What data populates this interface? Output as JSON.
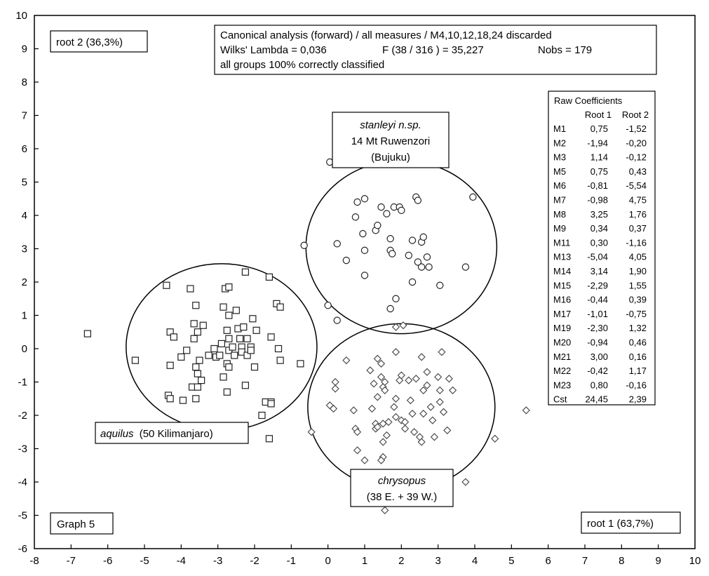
{
  "chart_data": {
    "type": "scatter",
    "xlim": [
      -8,
      10
    ],
    "ylim": [
      -6,
      10
    ],
    "x_ticks": [
      "-8",
      "-7",
      "-6",
      "-5",
      "-4",
      "-3",
      "-2",
      "-1",
      "0",
      "1",
      "2",
      "3",
      "4",
      "5",
      "6",
      "7",
      "8",
      "9",
      "10"
    ],
    "y_ticks": [
      "10",
      "9",
      "8",
      "7",
      "6",
      "5",
      "4",
      "3",
      "2",
      "1",
      "0",
      "-1",
      "-2",
      "-3",
      "-4",
      "-5",
      "-6"
    ],
    "grid": false,
    "xlabel": "root 1 (63,7%)",
    "ylabel": "root 2 (36,3%)",
    "graph_label": "Graph 5",
    "summary": {
      "line1": "Canonical analysis (forward) / all measures / M4,10,12,18,24 discarded",
      "line2a": "Wilks' Lambda = 0,036",
      "line2b": "F (38 / 316 ) = 35,227",
      "line2c": "Nobs = 179",
      "line3": "all groups 100% correctly classified"
    },
    "group_labels": {
      "stanleyi": {
        "name": "stanleyi n.sp.",
        "line2": "14 Mt Ruwenzori",
        "line3": "(Bujuku)"
      },
      "aquilus": {
        "name": "aquilus",
        "rest": "(50 Kilimanjaro)"
      },
      "chrysopus": {
        "name": "chrysopus",
        "line2": "(38 E. + 39 W.)"
      }
    },
    "ellipses": [
      {
        "group": "aquilus",
        "cx": -2.9,
        "cy": 0.05,
        "rx": 2.6,
        "ry": 2.5
      },
      {
        "group": "stanleyi",
        "cx": 2.0,
        "cy": 3.05,
        "rx": 2.6,
        "ry": 2.6
      },
      {
        "group": "chrysopus",
        "cx": 2.0,
        "cy": -1.75,
        "rx": 2.55,
        "ry": 2.5
      }
    ],
    "coefficients": {
      "title": "Raw Coefficients",
      "headers": [
        "",
        "Root 1",
        "Root 2"
      ],
      "rows": [
        [
          "M1",
          "0,75",
          "-1,52"
        ],
        [
          "M2",
          "-1,94",
          "-0,20"
        ],
        [
          "M3",
          "1,14",
          "-0,12"
        ],
        [
          "M5",
          "0,75",
          "0,43"
        ],
        [
          "M6",
          "-0,81",
          "-5,54"
        ],
        [
          "M7",
          "-0,98",
          "4,75"
        ],
        [
          "M8",
          "3,25",
          "1,76"
        ],
        [
          "M9",
          "0,34",
          "0,37"
        ],
        [
          "M11",
          "0,30",
          "-1,16"
        ],
        [
          "M13",
          "-5,04",
          "4,05"
        ],
        [
          "M14",
          "3,14",
          "1,90"
        ],
        [
          "M15",
          "-2,29",
          "1,55"
        ],
        [
          "M16",
          "-0,44",
          "0,39"
        ],
        [
          "M17",
          "-1,01",
          "-0,75"
        ],
        [
          "M19",
          "-2,30",
          "1,32"
        ],
        [
          "M20",
          "-0,94",
          "0,46"
        ],
        [
          "M21",
          "3,00",
          "0,16"
        ],
        [
          "M22",
          "-0,42",
          "1,17"
        ],
        [
          "M23",
          "0,80",
          "-0,16"
        ],
        [
          "Cst",
          "24,45",
          "2,39"
        ]
      ]
    },
    "series": [
      {
        "group": "aquilus",
        "marker": "square",
        "points": [
          [
            -6.55,
            0.45
          ],
          [
            -5.25,
            -0.35
          ],
          [
            -4.4,
            1.9
          ],
          [
            -4.3,
            0.5
          ],
          [
            -4.3,
            -0.5
          ],
          [
            -4.35,
            -1.4
          ],
          [
            -4.3,
            -1.5
          ],
          [
            -3.95,
            -1.55
          ],
          [
            -3.75,
            1.8
          ],
          [
            -4.2,
            0.35
          ],
          [
            -4.0,
            -0.25
          ],
          [
            -3.85,
            -0.05
          ],
          [
            -3.6,
            -1.5
          ],
          [
            -3.7,
            -1.15
          ],
          [
            -3.55,
            -1.15
          ],
          [
            -3.45,
            -0.95
          ],
          [
            -3.5,
            -0.35
          ],
          [
            -3.65,
            0.3
          ],
          [
            -3.55,
            0.5
          ],
          [
            -3.65,
            0.75
          ],
          [
            -3.4,
            0.7
          ],
          [
            -3.6,
            -0.55
          ],
          [
            -3.55,
            -0.75
          ],
          [
            -3.6,
            1.3
          ],
          [
            -3.25,
            -0.2
          ],
          [
            -3.1,
            0.0
          ],
          [
            -3.05,
            -0.25
          ],
          [
            -2.95,
            -0.2
          ],
          [
            -2.85,
            1.25
          ],
          [
            -2.9,
            0.15
          ],
          [
            -2.85,
            -0.85
          ],
          [
            -2.75,
            -0.45
          ],
          [
            -2.8,
            1.8
          ],
          [
            -2.7,
            1.85
          ],
          [
            -2.7,
            1.0
          ],
          [
            -2.75,
            0.55
          ],
          [
            -2.7,
            0.3
          ],
          [
            -2.7,
            -0.05
          ],
          [
            -2.7,
            -0.55
          ],
          [
            -2.75,
            -1.3
          ],
          [
            -2.6,
            0.05
          ],
          [
            -2.55,
            -0.2
          ],
          [
            -2.5,
            1.15
          ],
          [
            -2.45,
            0.6
          ],
          [
            -2.4,
            0.3
          ],
          [
            -2.35,
            0.05
          ],
          [
            -2.35,
            -0.1
          ],
          [
            -2.3,
            0.65
          ],
          [
            -2.25,
            2.3
          ],
          [
            -2.2,
            0.3
          ],
          [
            -2.2,
            -0.2
          ],
          [
            -2.1,
            0.05
          ],
          [
            -2.05,
            0.9
          ],
          [
            -2.1,
            -0.05
          ],
          [
            -2.0,
            -0.55
          ],
          [
            -1.95,
            0.55
          ],
          [
            -2.25,
            -1.1
          ],
          [
            -1.8,
            -2.0
          ],
          [
            -1.7,
            -1.6
          ],
          [
            -1.55,
            -1.6
          ],
          [
            -1.55,
            -1.65
          ],
          [
            -1.55,
            0.35
          ],
          [
            -1.6,
            2.15
          ],
          [
            -1.4,
            1.35
          ],
          [
            -1.3,
            1.25
          ],
          [
            -1.35,
            0.0
          ],
          [
            -1.3,
            -0.35
          ],
          [
            -1.6,
            -2.7
          ],
          [
            -0.75,
            -0.45
          ]
        ]
      },
      {
        "group": "stanleyi",
        "marker": "circle",
        "points": [
          [
            0.05,
            5.6
          ],
          [
            -0.65,
            3.1
          ],
          [
            0.0,
            1.3
          ],
          [
            0.25,
            0.85
          ],
          [
            0.25,
            3.15
          ],
          [
            0.5,
            2.65
          ],
          [
            0.75,
            3.95
          ],
          [
            0.8,
            4.4
          ],
          [
            1.0,
            4.5
          ],
          [
            0.95,
            3.45
          ],
          [
            1.0,
            2.95
          ],
          [
            1.0,
            2.2
          ],
          [
            1.3,
            3.55
          ],
          [
            1.35,
            3.7
          ],
          [
            1.45,
            4.25
          ],
          [
            1.6,
            4.05
          ],
          [
            1.7,
            3.3
          ],
          [
            1.7,
            2.95
          ],
          [
            1.75,
            2.85
          ],
          [
            1.7,
            1.2
          ],
          [
            1.85,
            1.5
          ],
          [
            1.8,
            4.25
          ],
          [
            1.95,
            4.25
          ],
          [
            2.0,
            4.15
          ],
          [
            2.2,
            2.8
          ],
          [
            2.3,
            3.25
          ],
          [
            2.3,
            2.0
          ],
          [
            2.4,
            4.55
          ],
          [
            2.45,
            4.45
          ],
          [
            2.45,
            2.6
          ],
          [
            2.55,
            3.2
          ],
          [
            2.55,
            2.45
          ],
          [
            2.6,
            3.35
          ],
          [
            2.7,
            2.75
          ],
          [
            2.75,
            2.45
          ],
          [
            3.05,
            1.9
          ],
          [
            3.75,
            2.45
          ],
          [
            3.95,
            4.55
          ]
        ]
      },
      {
        "group": "chrysopus",
        "marker": "diamond",
        "points": [
          [
            1.85,
            0.65
          ],
          [
            2.05,
            0.7
          ],
          [
            0.5,
            -0.35
          ],
          [
            1.35,
            -0.3
          ],
          [
            1.85,
            -0.1
          ],
          [
            0.2,
            -1.0
          ],
          [
            0.2,
            -1.2
          ],
          [
            0.05,
            -1.7
          ],
          [
            0.15,
            -1.8
          ],
          [
            0.7,
            -1.85
          ],
          [
            0.75,
            -2.4
          ],
          [
            0.8,
            -2.5
          ],
          [
            0.8,
            -3.05
          ],
          [
            1.0,
            -3.35
          ],
          [
            1.15,
            -0.65
          ],
          [
            1.25,
            -1.05
          ],
          [
            1.35,
            -1.45
          ],
          [
            1.3,
            -2.25
          ],
          [
            1.3,
            -2.4
          ],
          [
            1.35,
            -2.35
          ],
          [
            1.45,
            -0.45
          ],
          [
            1.45,
            -0.85
          ],
          [
            1.5,
            -1.15
          ],
          [
            1.55,
            -1.0
          ],
          [
            1.55,
            -1.25
          ],
          [
            1.5,
            -2.25
          ],
          [
            1.5,
            -2.8
          ],
          [
            1.5,
            -3.25
          ],
          [
            1.45,
            -3.35
          ],
          [
            1.6,
            -2.6
          ],
          [
            1.65,
            -2.2
          ],
          [
            1.8,
            -1.75
          ],
          [
            1.85,
            -1.5
          ],
          [
            1.85,
            -2.05
          ],
          [
            1.95,
            -0.95
          ],
          [
            2.0,
            -2.15
          ],
          [
            2.1,
            -2.2
          ],
          [
            2.1,
            -2.4
          ],
          [
            2.2,
            -0.95
          ],
          [
            2.25,
            -1.55
          ],
          [
            2.3,
            -1.95
          ],
          [
            2.35,
            -2.5
          ],
          [
            2.4,
            -0.9
          ],
          [
            2.5,
            -2.65
          ],
          [
            2.55,
            -2.8
          ],
          [
            2.6,
            -1.25
          ],
          [
            2.6,
            -1.95
          ],
          [
            2.7,
            -0.7
          ],
          [
            2.7,
            -1.1
          ],
          [
            2.8,
            -1.75
          ],
          [
            2.85,
            -2.15
          ],
          [
            2.9,
            -2.65
          ],
          [
            3.0,
            -0.85
          ],
          [
            3.05,
            -1.25
          ],
          [
            3.05,
            -1.6
          ],
          [
            3.1,
            -0.1
          ],
          [
            3.15,
            -1.9
          ],
          [
            3.25,
            -2.45
          ],
          [
            3.3,
            -0.9
          ],
          [
            3.4,
            -1.25
          ],
          [
            2.55,
            -0.25
          ],
          [
            2.0,
            -0.8
          ],
          [
            1.2,
            -1.8
          ],
          [
            3.75,
            -4.0
          ],
          [
            4.55,
            -2.7
          ],
          [
            5.4,
            -1.85
          ],
          [
            1.55,
            -4.85
          ],
          [
            -0.45,
            -2.5
          ]
        ]
      }
    ]
  }
}
